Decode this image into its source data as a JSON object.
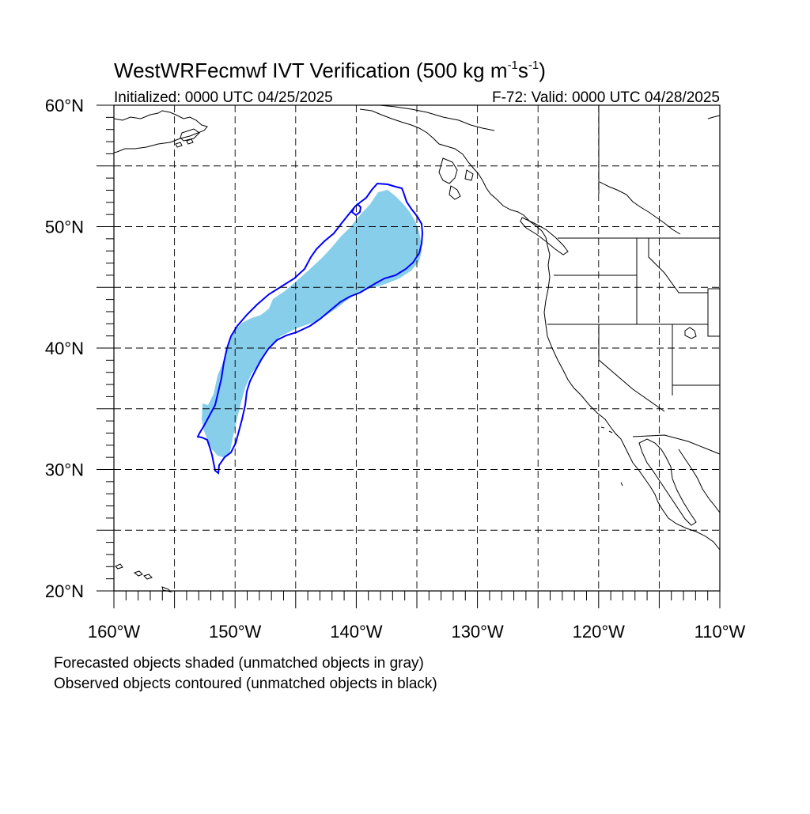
{
  "title": {
    "main": "WestWRFecmwf IVT Verification (500 kg m",
    "sup1": "-1",
    "mid": "s",
    "sup2": "-1",
    "end": ")"
  },
  "subtitle_left": "Initialized: 0000 UTC 04/25/2025",
  "subtitle_right": "F-72: Valid: 0000 UTC 04/28/2025",
  "lat_labels": [
    "60°N",
    "50°N",
    "40°N",
    "30°N",
    "20°N"
  ],
  "lon_labels": [
    "160°W",
    "150°W",
    "140°W",
    "130°W",
    "120°W",
    "110°W"
  ],
  "legend": {
    "line1": "Forecasted objects shaded (unmatched objects in gray)",
    "line2": "Observed objects contoured (unmatched objects in black)"
  },
  "colors": {
    "forecast_fill": "#87ceeb",
    "observed_contour": "#0000ff",
    "coastline": "#000000",
    "grid": "#000000"
  },
  "map_extent": {
    "lon_min": -160,
    "lon_max": -110,
    "lat_min": 20,
    "lat_max": 60,
    "grid_lon_step": 5,
    "grid_lat_step": 5
  }
}
